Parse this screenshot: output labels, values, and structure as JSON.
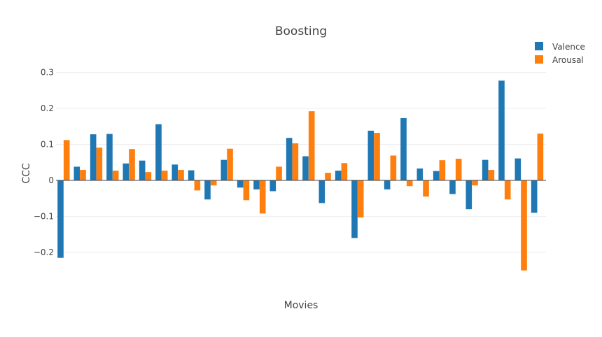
{
  "chart_data": {
    "type": "bar",
    "title": "Boosting",
    "xlabel": "Movies",
    "ylabel": "CCC",
    "ylim": [
      -0.25,
      0.3
    ],
    "yticks": [
      0.3,
      0.2,
      0.1,
      0,
      -0.1,
      -0.2
    ],
    "ytick_labels": [
      "0.3",
      "0.2",
      "0.1",
      "0",
      "−0.1",
      "−0.2"
    ],
    "grid": true,
    "legend_position": "top-right",
    "colors": {
      "Valence": "#1f77b4",
      "Arousal": "#ff7f0e",
      "grid": "#eeeeee",
      "zeroline": "#444444"
    },
    "series": [
      {
        "name": "Valence",
        "values": [
          -0.215,
          0.038,
          0.128,
          0.129,
          0.047,
          0.055,
          0.156,
          0.044,
          0.028,
          -0.053,
          0.057,
          -0.02,
          -0.025,
          -0.03,
          0.118,
          0.067,
          -0.063,
          0.027,
          -0.16,
          0.138,
          -0.025,
          0.173,
          0.033,
          0.026,
          -0.038,
          -0.08,
          0.057,
          0.277,
          0.061,
          -0.09
        ]
      },
      {
        "name": "Arousal",
        "values": [
          0.112,
          0.029,
          0.091,
          0.027,
          0.087,
          0.023,
          0.027,
          0.029,
          -0.028,
          -0.014,
          0.088,
          -0.055,
          -0.092,
          0.038,
          0.103,
          0.192,
          0.021,
          0.048,
          -0.103,
          0.132,
          0.069,
          -0.016,
          -0.045,
          0.056,
          0.06,
          -0.014,
          0.029,
          -0.053,
          -0.25,
          0.13
        ]
      }
    ]
  }
}
